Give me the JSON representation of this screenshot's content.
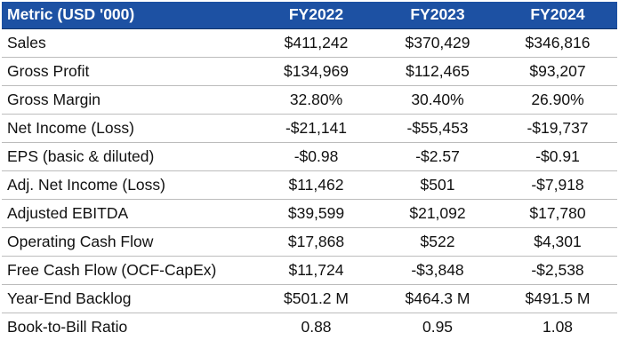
{
  "table": {
    "headers": [
      "Metric (USD '000)",
      "FY2022",
      "FY2023",
      "FY2024"
    ],
    "rows": [
      [
        "Sales",
        "$411,242",
        "$370,429",
        "$346,816"
      ],
      [
        "Gross Profit",
        "$134,969",
        "$112,465",
        "$93,207"
      ],
      [
        "Gross Margin",
        "32.80%",
        "30.40%",
        "26.90%"
      ],
      [
        "Net Income (Loss)",
        "-$21,141",
        "-$55,453",
        "-$19,737"
      ],
      [
        "EPS (basic & diluted)",
        "-$0.98",
        "-$2.57",
        "-$0.91"
      ],
      [
        "Adj. Net Income (Loss)",
        "$11,462",
        "$501",
        "-$7,918"
      ],
      [
        "Adjusted EBITDA",
        "$39,599",
        "$21,092",
        "$17,780"
      ],
      [
        "Operating Cash Flow",
        "$17,868",
        "$522",
        "$4,301"
      ],
      [
        "Free Cash Flow (OCF-CapEx)",
        "$11,724",
        "-$3,848",
        "-$2,538"
      ],
      [
        "Year-End Backlog",
        "$501.2 M",
        "$464.3 M",
        "$491.5 M"
      ],
      [
        "Book-to-Bill Ratio",
        "0.88",
        "0.95",
        "1.08"
      ]
    ]
  },
  "colors": {
    "header_bg": "#1d51a3",
    "header_text": "#ffffff",
    "row_divider": "#bcbcbc"
  }
}
